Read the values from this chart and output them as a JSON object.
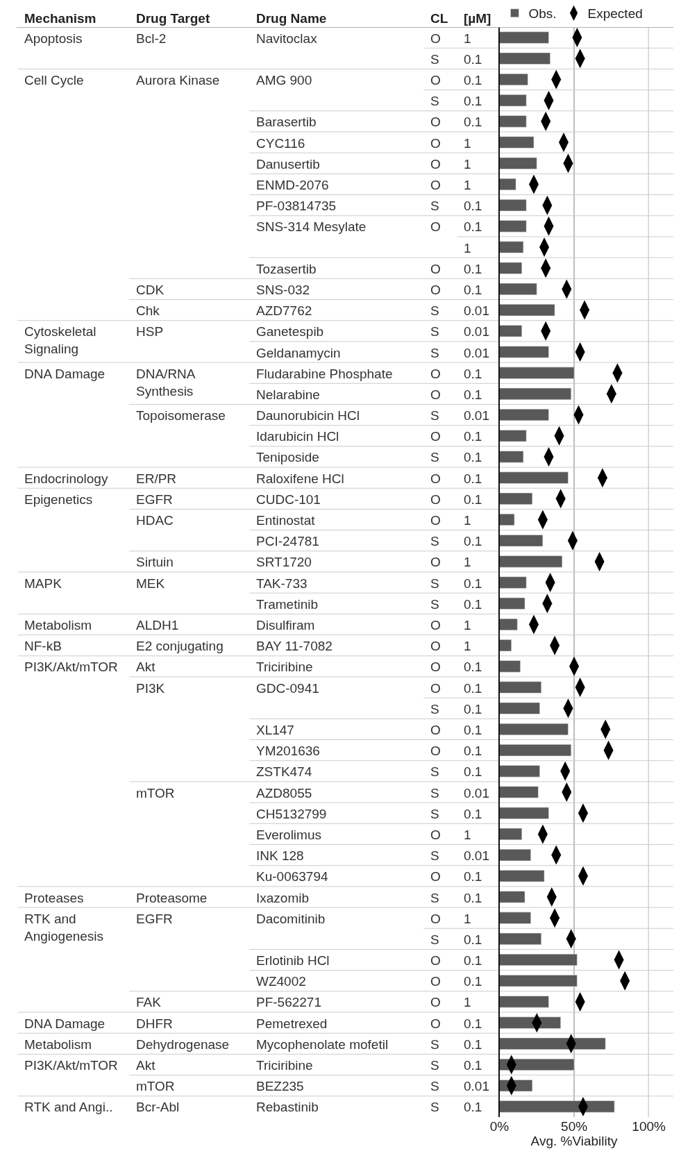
{
  "chart_data": [
    {
      "type": "other",
      "categories": [
        "Mechanism",
        "Drug Target",
        "Drug Name",
        "CL",
        "[µM]"
      ],
      "cell_labels": [
        [
          "Apoptosis",
          "Bcl-2",
          "Navitoclax",
          "O",
          "1"
        ],
        [
          null,
          null,
          null,
          "S",
          "0.1"
        ],
        [
          "Cell Cycle",
          "Aurora Kinase",
          "AMG 900",
          "O",
          "0.1"
        ],
        [
          null,
          null,
          null,
          "S",
          "0.1"
        ],
        [
          null,
          null,
          "Barasertib",
          "O",
          "0.1"
        ],
        [
          null,
          null,
          "CYC116",
          "O",
          "1"
        ],
        [
          null,
          null,
          "Danusertib",
          "O",
          "1"
        ],
        [
          null,
          null,
          "ENMD-2076",
          "O",
          "1"
        ],
        [
          null,
          null,
          "PF-03814735",
          "S",
          "0.1"
        ],
        [
          null,
          null,
          "SNS-314 Mesylate",
          "O",
          "0.1"
        ],
        [
          null,
          null,
          null,
          null,
          "1"
        ],
        [
          null,
          null,
          "Tozasertib",
          "O",
          "0.1"
        ],
        [
          null,
          "CDK",
          "SNS-032",
          "O",
          "0.1"
        ],
        [
          null,
          "Chk",
          "AZD7762",
          "S",
          "0.01"
        ],
        [
          "Cytoskeletal\nSignaling",
          "HSP",
          "Ganetespib",
          "S",
          "0.01"
        ],
        [
          null,
          null,
          "Geldanamycin",
          "S",
          "0.01"
        ],
        [
          "DNA Damage",
          "DNA/RNA\nSynthesis",
          "Fludarabine Phosphate",
          "O",
          "0.1"
        ],
        [
          null,
          null,
          "Nelarabine",
          "O",
          "0.1"
        ],
        [
          null,
          "Topoisomerase",
          "Daunorubicin HCl",
          "S",
          "0.01"
        ],
        [
          null,
          null,
          "Idarubicin HCl",
          "O",
          "0.1"
        ],
        [
          null,
          null,
          "Teniposide",
          "S",
          "0.1"
        ],
        [
          "Endocrinology",
          "ER/PR",
          "Raloxifene HCl",
          "O",
          "0.1"
        ],
        [
          "Epigenetics",
          "EGFR",
          "CUDC-101",
          "O",
          "0.1"
        ],
        [
          null,
          "HDAC",
          "Entinostat",
          "O",
          "1"
        ],
        [
          null,
          null,
          "PCI-24781",
          "S",
          "0.1"
        ],
        [
          null,
          "Sirtuin",
          "SRT1720",
          "O",
          "1"
        ],
        [
          "MAPK",
          "MEK",
          "TAK-733",
          "S",
          "0.1"
        ],
        [
          null,
          null,
          "Trametinib",
          "S",
          "0.1"
        ],
        [
          "Metabolism",
          "ALDH1",
          "Disulfiram",
          "O",
          "1"
        ],
        [
          "NF-kB",
          "E2 conjugating",
          "BAY 11-7082",
          "O",
          "1"
        ],
        [
          "PI3K/Akt/mTOR",
          "Akt",
          "Triciribine",
          "O",
          "0.1"
        ],
        [
          null,
          "PI3K",
          "GDC-0941",
          "O",
          "0.1"
        ],
        [
          null,
          null,
          null,
          "S",
          "0.1"
        ],
        [
          null,
          null,
          "XL147",
          "O",
          "0.1"
        ],
        [
          null,
          null,
          "YM201636",
          "O",
          "0.1"
        ],
        [
          null,
          null,
          "ZSTK474",
          "S",
          "0.1"
        ],
        [
          null,
          "mTOR",
          "AZD8055",
          "S",
          "0.01"
        ],
        [
          null,
          null,
          "CH5132799",
          "S",
          "0.1"
        ],
        [
          null,
          null,
          "Everolimus",
          "O",
          "1"
        ],
        [
          null,
          null,
          "INK 128",
          "S",
          "0.01"
        ],
        [
          null,
          null,
          "Ku-0063794",
          "O",
          "0.1"
        ],
        [
          "Proteases",
          "Proteasome",
          "Ixazomib",
          "S",
          "0.1"
        ],
        [
          "RTK and\nAngiogenesis",
          "EGFR",
          "Dacomitinib",
          "O",
          "1"
        ],
        [
          null,
          null,
          null,
          "S",
          "0.1"
        ],
        [
          null,
          null,
          "Erlotinib HCl",
          "O",
          "0.1"
        ],
        [
          null,
          null,
          "WZ4002",
          "O",
          "0.1"
        ],
        [
          null,
          "FAK",
          "PF-562271",
          "O",
          "1"
        ],
        [
          "DNA Damage",
          "DHFR",
          "Pemetrexed",
          "O",
          "0.1"
        ],
        [
          "Metabolism",
          "Dehydrogenase",
          "Mycophenolate mofetil",
          "S",
          "0.1"
        ],
        [
          "PI3K/Akt/mTOR",
          "Akt",
          "Triciribine",
          "S",
          "0.1"
        ],
        [
          null,
          "mTOR",
          "BEZ235",
          "S",
          "0.01"
        ],
        [
          "RTK and Angi..",
          "Bcr-Abl",
          "Rebastinib",
          "S",
          "0.1"
        ]
      ]
    },
    {
      "type": "bar",
      "orientation": "horizontal",
      "categories": [
        null,
        null,
        null,
        null,
        null,
        null,
        null,
        null,
        null,
        null,
        null,
        null,
        null,
        null,
        null,
        null,
        null,
        null,
        null,
        null,
        null,
        null,
        null,
        null,
        null,
        null,
        null,
        null,
        null,
        null,
        null,
        null,
        null,
        null,
        null,
        null,
        null,
        null,
        null,
        null,
        null,
        null,
        null,
        null,
        null,
        null,
        null,
        null,
        null,
        null,
        null,
        null
      ],
      "xlabel": "Avg. %Viability",
      "xlim": [
        0,
        100
      ],
      "xticks": [
        {
          "value": 0,
          "label": "0%"
        },
        {
          "value": 50,
          "label": "50%"
        },
        {
          "value": 100,
          "label": "100%"
        }
      ],
      "ref_lines": [
        {
          "axis": "x",
          "value": 50,
          "color": "#bbbbbb"
        },
        {
          "axis": "x",
          "value": 100,
          "color": "#bbbbbb"
        }
      ],
      "legend": "top right",
      "series": [
        {
          "name": "Obs.",
          "color": "#595959",
          "values": [
            33,
            34,
            19,
            18,
            18,
            23,
            25,
            11,
            18,
            18,
            16,
            15,
            25,
            37,
            15,
            33,
            50,
            48,
            33,
            18,
            16,
            46,
            22,
            10,
            29,
            42,
            18,
            17,
            12,
            8,
            14,
            28,
            27,
            46,
            48,
            27,
            26,
            33,
            15,
            21,
            30,
            17,
            21,
            28,
            52,
            52,
            33,
            41,
            71,
            50,
            22,
            77
          ]
        },
        {
          "name": "Expected",
          "type": "scatter",
          "color": "#000000",
          "values": [
            52,
            54,
            38,
            33,
            31,
            43,
            46,
            23,
            32,
            33,
            30,
            31,
            45,
            57,
            31,
            54,
            79,
            75,
            53,
            40,
            33,
            69,
            41,
            29,
            49,
            67,
            34,
            32,
            23,
            37,
            50,
            54,
            46,
            71,
            73,
            44,
            45,
            56,
            29,
            38,
            56,
            35,
            37,
            48,
            80,
            84,
            54,
            25,
            48,
            8,
            8,
            56
          ]
        }
      ]
    }
  ]
}
